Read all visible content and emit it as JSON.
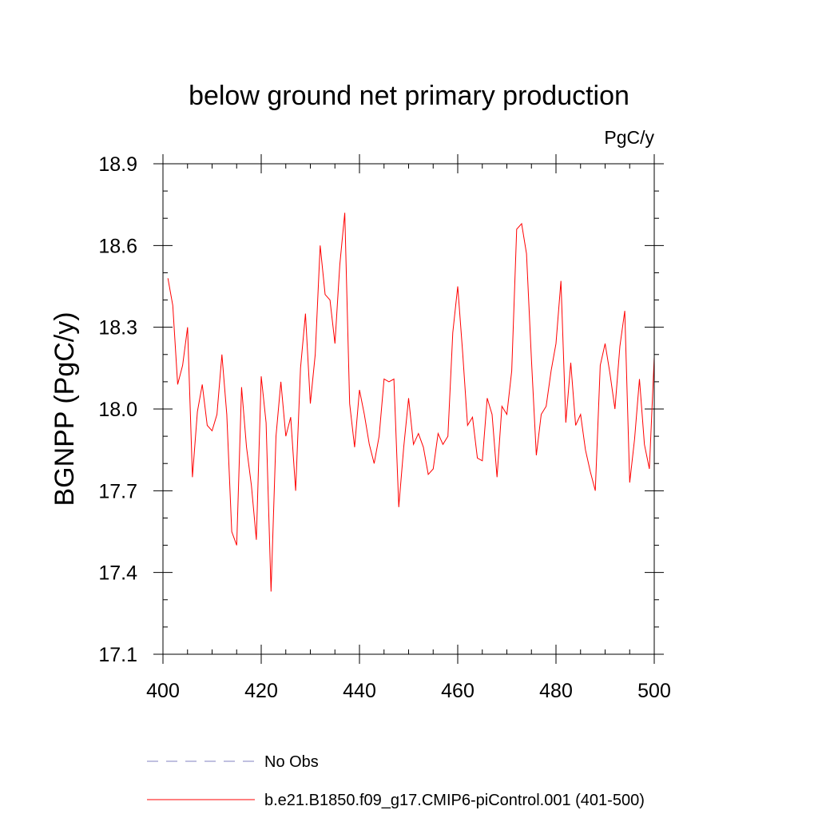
{
  "chart_data": {
    "type": "line",
    "title": "below ground net primary production",
    "units_label": "PgC/y",
    "ylabel": "BGNPP  (PgC/y)",
    "xlabel": "",
    "xlim": [
      400,
      500
    ],
    "ylim": [
      17.1,
      18.9
    ],
    "x_ticks": [
      400,
      420,
      440,
      460,
      480,
      500
    ],
    "x_tick_labels": [
      "400",
      "420",
      "440",
      "460",
      "480",
      "500"
    ],
    "y_ticks": [
      17.1,
      17.4,
      17.7,
      18.0,
      18.3,
      18.6,
      18.9
    ],
    "y_tick_labels": [
      "17.1",
      "17.4",
      "17.7",
      "18.0",
      "18.3",
      "18.6",
      "18.9"
    ],
    "grid": false,
    "legend_position": "bottom",
    "series": [
      {
        "name": "b.e21.B1850.f09_g17.CMIP6-piControl.001 (401-500)",
        "color": "#ff0000",
        "style": "solid",
        "x": [
          401,
          402,
          403,
          404,
          405,
          406,
          407,
          408,
          409,
          410,
          411,
          412,
          413,
          414,
          415,
          416,
          417,
          418,
          419,
          420,
          421,
          422,
          423,
          424,
          425,
          426,
          427,
          428,
          429,
          430,
          431,
          432,
          433,
          434,
          435,
          436,
          437,
          438,
          439,
          440,
          441,
          442,
          443,
          444,
          445,
          446,
          447,
          448,
          449,
          450,
          451,
          452,
          453,
          454,
          455,
          456,
          457,
          458,
          459,
          460,
          461,
          462,
          463,
          464,
          465,
          466,
          467,
          468,
          469,
          470,
          471,
          472,
          473,
          474,
          475,
          476,
          477,
          478,
          479,
          480,
          481,
          482,
          483,
          484,
          485,
          486,
          487,
          488,
          489,
          490,
          491,
          492,
          493,
          494,
          495,
          496,
          497,
          498,
          499,
          500
        ],
        "y": [
          18.48,
          18.38,
          18.09,
          18.16,
          18.3,
          17.75,
          17.99,
          18.09,
          17.94,
          17.92,
          17.98,
          18.2,
          17.98,
          17.55,
          17.5,
          18.08,
          17.86,
          17.72,
          17.52,
          18.12,
          17.95,
          17.33,
          17.9,
          18.1,
          17.9,
          17.97,
          17.7,
          18.15,
          18.35,
          18.02,
          18.2,
          18.6,
          18.42,
          18.4,
          18.24,
          18.53,
          18.72,
          18.02,
          17.86,
          18.07,
          17.98,
          17.87,
          17.8,
          17.9,
          18.11,
          18.1,
          18.11,
          17.64,
          17.86,
          18.04,
          17.87,
          17.91,
          17.86,
          17.76,
          17.78,
          17.91,
          17.87,
          17.9,
          18.28,
          18.45,
          18.21,
          17.94,
          17.97,
          17.82,
          17.81,
          18.04,
          17.98,
          17.75,
          18.01,
          17.98,
          18.14,
          18.66,
          18.68,
          18.57,
          18.18,
          17.83,
          17.98,
          18.01,
          18.14,
          18.24,
          18.47,
          17.95,
          18.17,
          17.94,
          17.98,
          17.85,
          17.77,
          17.7,
          18.16,
          18.24,
          18.13,
          18.0,
          18.23,
          18.36,
          17.73,
          17.89,
          18.11,
          17.87,
          17.78,
          18.19
        ]
      },
      {
        "name": "No Obs",
        "color": "#8080c0",
        "style": "dashed",
        "x": [],
        "y": []
      }
    ]
  }
}
